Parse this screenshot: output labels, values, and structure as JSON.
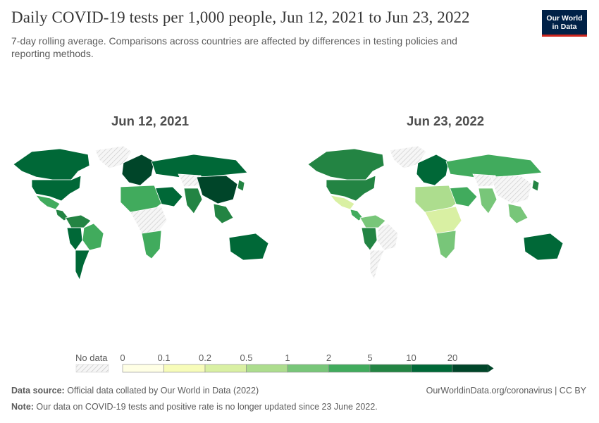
{
  "title": "Daily COVID-19 tests per 1,000 people, Jun 12, 2021 to Jun 23, 2022",
  "subtitle": "7-day rolling average. Comparisons across countries are affected by differences in testing policies and reporting methods.",
  "logo": {
    "line1": "Our World",
    "line2": "in Data"
  },
  "maps": [
    {
      "date": "Jun 12, 2021",
      "levels": {
        "north_america": 5,
        "usa": 5,
        "mexico": 1,
        "central_america": 2,
        "south_america_north": 2,
        "brazil": 1,
        "south_america_west": 5,
        "argentina": 5,
        "europe": 10,
        "russia": 5,
        "middle_east": 5,
        "china": 20,
        "india": 2,
        "southeast_asia": 2,
        "africa_north": 1,
        "africa_south": 1,
        "australia": 5,
        "japan": 2,
        "greenland": "no_data",
        "central_africa": "no_data",
        "central_asia": "no_data"
      }
    },
    {
      "date": "Jun 23, 2022",
      "levels": {
        "north_america": 2,
        "usa": 2,
        "mexico": 0.1,
        "central_america": 1,
        "south_america_north": 0.5,
        "brazil": "no_data",
        "south_america_west": 2,
        "argentina": "no_data",
        "europe": 5,
        "russia": 1,
        "middle_east": 1,
        "china": "no_data",
        "india": 0.5,
        "southeast_asia": 0.5,
        "africa_north": 0.2,
        "africa_south": 0.5,
        "australia": 5,
        "japan": 2,
        "greenland": "no_data",
        "central_africa": 0.1,
        "central_asia": "no_data"
      }
    }
  ],
  "legend": {
    "no_data_label": "No data",
    "ticks": [
      "0",
      "0.1",
      "0.2",
      "0.5",
      "1",
      "2",
      "5",
      "10",
      "20"
    ],
    "colors": [
      "#ffffe5",
      "#f7fcb9",
      "#d9f0a3",
      "#addd8e",
      "#78c679",
      "#41ab5d",
      "#238443",
      "#006837",
      "#004529"
    ]
  },
  "footer": {
    "source_label": "Data source:",
    "source_text": " Official data collated by Our World in Data (2022)",
    "link": "OurWorldinData.org/coronavirus | CC BY",
    "note_label": "Note:",
    "note_text": " Our data on COVID-19 tests and positive rate is no longer updated since 23 June 2022."
  }
}
